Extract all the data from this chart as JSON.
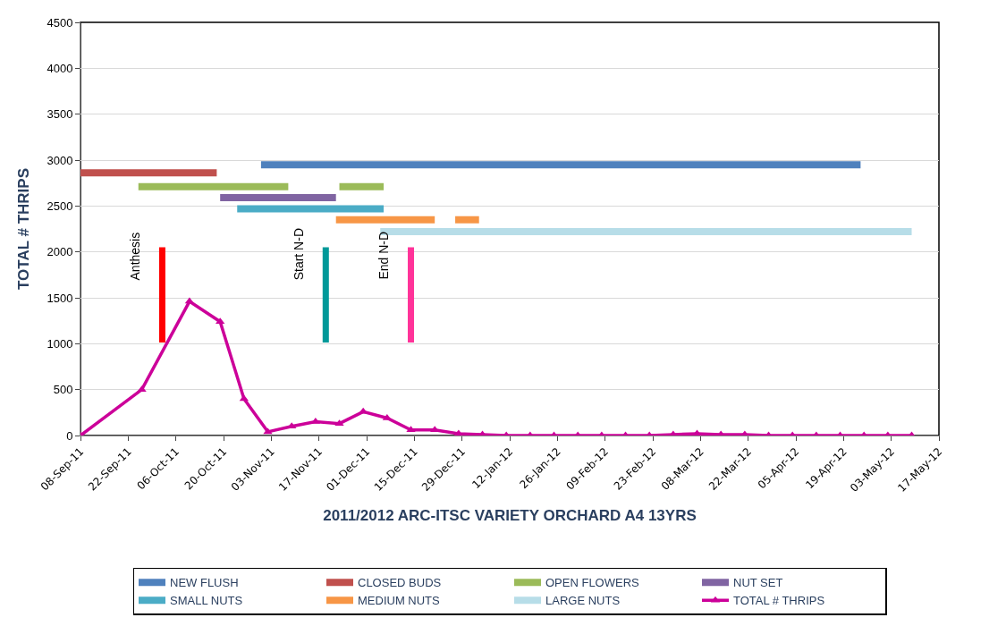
{
  "chart_data": {
    "type": "line",
    "xlabel": "2011/2012 ARC-ITSC VARIETY ORCHARD A4 13YRS",
    "ylabel": "TOTAL # THRIPS",
    "xlim": [
      "2011-09-08",
      "2012-05-17"
    ],
    "xticks": [
      {
        "value": "2011-09-08",
        "label": "08-Sep-11"
      },
      {
        "value": "2011-09-22",
        "label": "22-Sep-11"
      },
      {
        "value": "2011-10-06",
        "label": "06-Oct-11"
      },
      {
        "value": "2011-10-20",
        "label": "20-Oct-11"
      },
      {
        "value": "2011-11-03",
        "label": "03-Nov-11"
      },
      {
        "value": "2011-11-17",
        "label": "17-Nov-11"
      },
      {
        "value": "2011-12-01",
        "label": "01-Dec-11"
      },
      {
        "value": "2011-12-15",
        "label": "15-Dec-11"
      },
      {
        "value": "2011-12-29",
        "label": "29-Dec-11"
      },
      {
        "value": "2012-01-12",
        "label": "12-Jan-12"
      },
      {
        "value": "2012-01-26",
        "label": "26-Jan-12"
      },
      {
        "value": "2012-02-09",
        "label": "09-Feb-12"
      },
      {
        "value": "2012-02-23",
        "label": "23-Feb-12"
      },
      {
        "value": "2012-03-08",
        "label": "08-Mar-12"
      },
      {
        "value": "2012-03-22",
        "label": "22-Mar-12"
      },
      {
        "value": "2012-04-05",
        "label": "05-Apr-12"
      },
      {
        "value": "2012-04-19",
        "label": "19-Apr-12"
      },
      {
        "value": "2012-05-03",
        "label": "03-May-12"
      },
      {
        "value": "2012-05-17",
        "label": "17-May-12"
      }
    ],
    "ylim": [
      0,
      4500
    ],
    "yticks": [
      0,
      500,
      1000,
      1500,
      2000,
      2500,
      3000,
      3500,
      4000,
      4500
    ],
    "grid": "y",
    "legend": "bottom",
    "series": [
      {
        "name": "NEW FLUSH",
        "color": "#4f81bd",
        "marker": "none",
        "x": [
          "2011-10-31",
          "2012-04-24"
        ],
        "values": [
          2950,
          2950
        ]
      },
      {
        "name": "CLOSED BUDS",
        "color": "#c0504d",
        "marker": "none",
        "x": [
          "2011-09-08",
          "2011-10-18"
        ],
        "values": [
          2860,
          2860
        ]
      },
      {
        "name": "OPEN FLOWERS",
        "color": "#9bbb59",
        "marker": "none",
        "x": [
          "2011-09-25",
          "2011-11-08",
          "2011-11-15",
          "2011-11-23",
          "2011-12-06"
        ],
        "values": [
          2710,
          2710,
          null,
          2710,
          2710
        ]
      },
      {
        "name": "NUT SET",
        "color": "#8064a2",
        "marker": "none",
        "x": [
          "2011-10-19",
          "2011-11-22"
        ],
        "values": [
          2590,
          2590
        ]
      },
      {
        "name": "SMALL NUTS",
        "color": "#4bacc6",
        "marker": "none",
        "x": [
          "2011-10-24",
          "2011-12-06"
        ],
        "values": [
          2470,
          2470
        ]
      },
      {
        "name": "MEDIUM NUTS",
        "color": "#f79646",
        "marker": "none",
        "x": [
          "2011-11-22",
          "2011-12-21",
          "2011-12-24",
          "2011-12-27",
          "2012-01-03"
        ],
        "values": [
          2350,
          2350,
          null,
          2350,
          2350
        ]
      },
      {
        "name": "LARGE NUTS",
        "color": "#b7dde8",
        "marker": "none",
        "x": [
          "2011-12-05",
          "2012-05-09"
        ],
        "values": [
          2220,
          2220
        ]
      },
      {
        "name": "TOTAL # THRIPS",
        "color": "#cc0099",
        "marker": "triangle",
        "x": [
          "2011-09-08",
          "2011-09-26",
          "2011-10-10",
          "2011-10-19",
          "2011-10-26",
          "2011-11-02",
          "2011-11-09",
          "2011-11-16",
          "2011-11-23",
          "2011-11-30",
          "2011-12-07",
          "2011-12-14",
          "2011-12-21",
          "2011-12-28",
          "2012-01-04",
          "2012-01-11",
          "2012-01-18",
          "2012-01-25",
          "2012-02-01",
          "2012-02-08",
          "2012-02-15",
          "2012-02-22",
          "2012-02-29",
          "2012-03-07",
          "2012-03-14",
          "2012-03-21",
          "2012-03-28",
          "2012-04-04",
          "2012-04-11",
          "2012-04-18",
          "2012-04-25",
          "2012-05-02",
          "2012-05-09"
        ],
        "values": [
          0,
          500,
          1460,
          1240,
          400,
          40,
          100,
          150,
          130,
          260,
          190,
          60,
          60,
          20,
          10,
          0,
          0,
          0,
          0,
          0,
          0,
          0,
          10,
          20,
          10,
          10,
          0,
          0,
          0,
          0,
          0,
          0,
          0
        ]
      }
    ],
    "ref_lines": [
      {
        "axis": "x",
        "value": "2011-10-02",
        "label": "Anthesis",
        "color": "#ff0000"
      },
      {
        "axis": "x",
        "value": "2011-11-19",
        "label": "Start N-D",
        "color": "#009999"
      },
      {
        "axis": "x",
        "value": "2011-12-14",
        "label": "End N-D",
        "color": "#ff3399"
      }
    ]
  }
}
